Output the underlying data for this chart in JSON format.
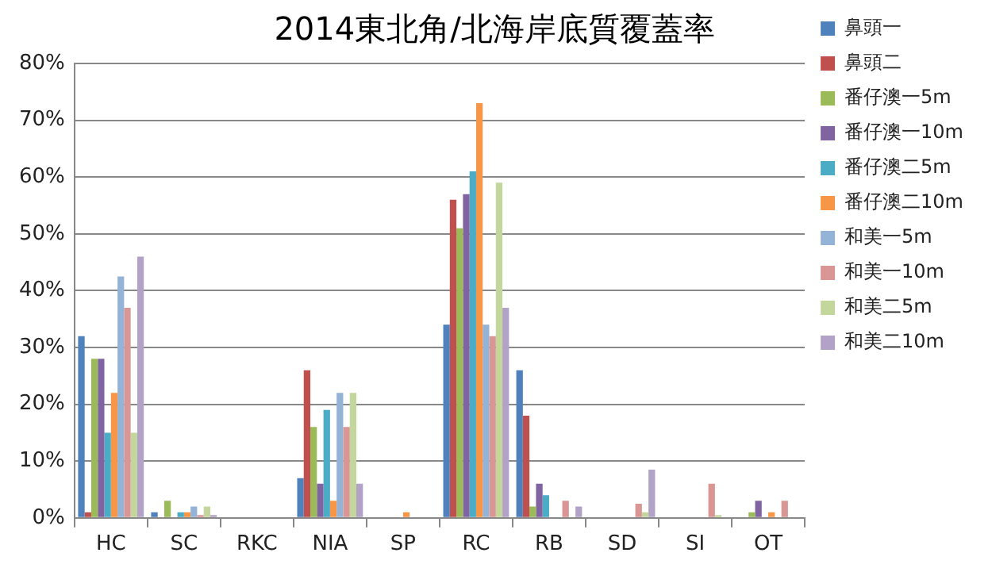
{
  "chart_data": {
    "type": "bar",
    "title": "2014東北角/北海岸底質覆蓋率",
    "categories": [
      "HC",
      "SC",
      "RKC",
      "NIA",
      "SP",
      "RC",
      "RB",
      "SD",
      "SI",
      "OT"
    ],
    "series": [
      {
        "name": "鼻頭一",
        "color": "#4f81bd",
        "values": [
          32,
          1,
          0,
          7,
          0,
          34,
          26,
          0,
          0,
          0
        ]
      },
      {
        "name": "鼻頭二",
        "color": "#c0504d",
        "values": [
          1,
          0,
          0,
          26,
          0,
          56,
          18,
          0,
          0,
          0
        ]
      },
      {
        "name": "番仔澳一5m",
        "color": "#9bbb59",
        "values": [
          28,
          3,
          0,
          16,
          0,
          51,
          2,
          0,
          0,
          1
        ]
      },
      {
        "name": "番仔澳一10m",
        "color": "#8064a2",
        "values": [
          28,
          0,
          0,
          6,
          0,
          57,
          6,
          0,
          0,
          3
        ]
      },
      {
        "name": "番仔澳二5m",
        "color": "#4bacc6",
        "values": [
          15,
          1,
          0,
          19,
          0,
          61,
          4,
          0,
          0,
          0
        ]
      },
      {
        "name": "番仔澳二10m",
        "color": "#f79646",
        "values": [
          22,
          1,
          0,
          3,
          1,
          73,
          0,
          0,
          0,
          1
        ]
      },
      {
        "name": "和美一5m",
        "color": "#95b3d7",
        "values": [
          42.5,
          2,
          0,
          22,
          0,
          34,
          0,
          0,
          0,
          0
        ]
      },
      {
        "name": "和美一10m",
        "color": "#d99694",
        "values": [
          37,
          0.5,
          0,
          16,
          0,
          32,
          3,
          2.5,
          6,
          3
        ]
      },
      {
        "name": "和美二5m",
        "color": "#c3d69b",
        "values": [
          15,
          2,
          0,
          22,
          0,
          59,
          0,
          1,
          0.5,
          0
        ]
      },
      {
        "name": "和美二10m",
        "color": "#b2a2c7",
        "values": [
          46,
          0.5,
          0,
          6,
          0,
          37,
          2,
          8.5,
          0,
          0
        ]
      }
    ],
    "ylim": [
      0,
      80
    ],
    "yticks": [
      {
        "value": 0,
        "label": "0%"
      },
      {
        "value": 10,
        "label": "10%"
      },
      {
        "value": 20,
        "label": "20%"
      },
      {
        "value": 30,
        "label": "30%"
      },
      {
        "value": 40,
        "label": "40%"
      },
      {
        "value": 50,
        "label": "50%"
      },
      {
        "value": 60,
        "label": "60%"
      },
      {
        "value": 70,
        "label": "70%"
      },
      {
        "value": 80,
        "label": "80%"
      }
    ],
    "grid": "y",
    "legend": "right"
  }
}
